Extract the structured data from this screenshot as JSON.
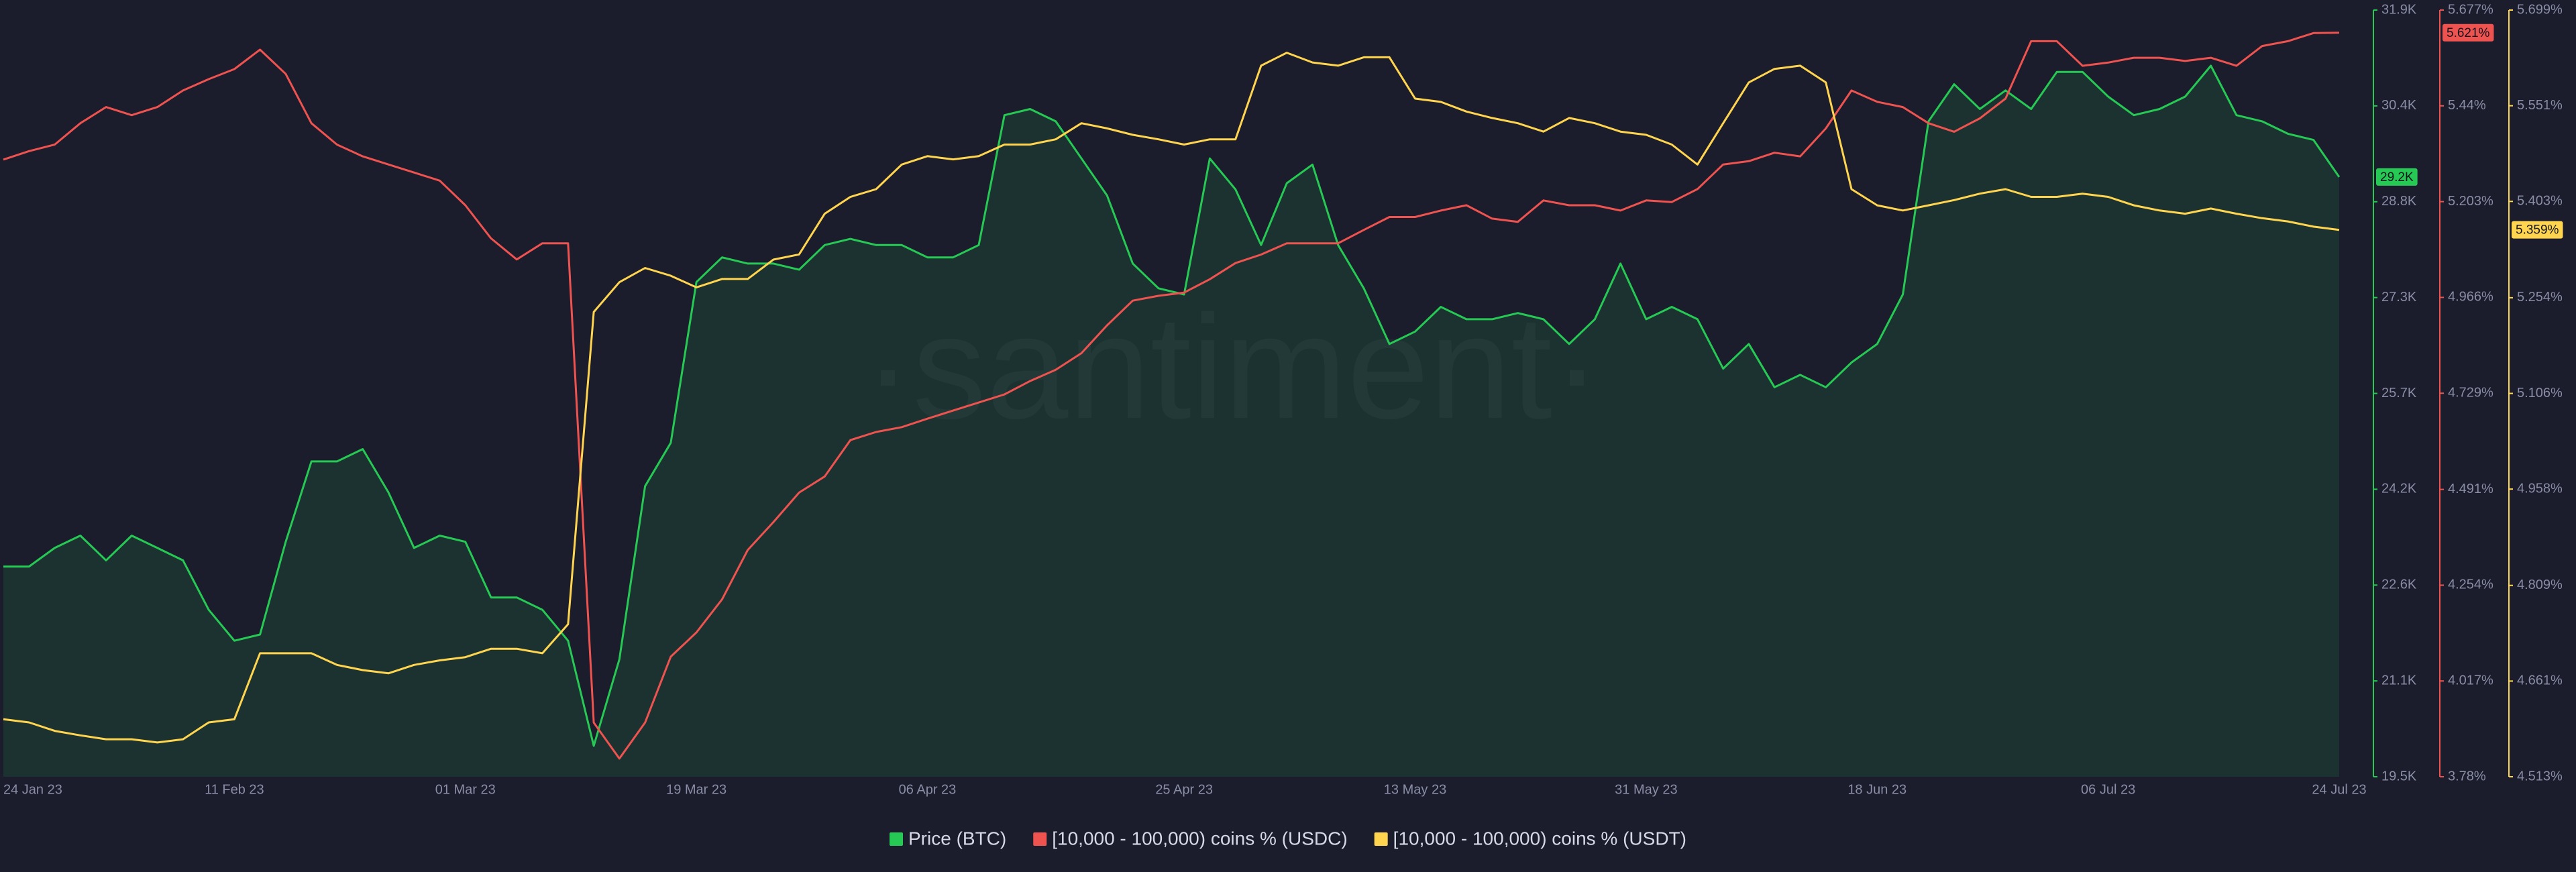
{
  "chart_data": {
    "type": "line",
    "watermark": "·santiment·",
    "categories": [
      "24 Jan 23",
      null,
      null,
      null,
      null,
      null,
      null,
      null,
      null,
      "11 Feb 23",
      null,
      null,
      null,
      null,
      null,
      null,
      null,
      null,
      "01 Mar 23",
      null,
      null,
      null,
      null,
      null,
      null,
      null,
      null,
      "19 Mar 23",
      null,
      null,
      null,
      null,
      null,
      null,
      null,
      null,
      "06 Apr 23",
      null,
      null,
      null,
      null,
      null,
      null,
      null,
      null,
      null,
      "25 Apr 23",
      null,
      null,
      null,
      null,
      null,
      null,
      null,
      null,
      "13 May 23",
      null,
      null,
      null,
      null,
      null,
      null,
      null,
      null,
      "31 May 23",
      null,
      null,
      null,
      null,
      null,
      null,
      null,
      null,
      "18 Jun 23",
      null,
      null,
      null,
      null,
      null,
      null,
      null,
      null,
      "06 Jul 23",
      null,
      null,
      null,
      null,
      null,
      null,
      null,
      null,
      "24 Jul 23"
    ],
    "ylim": [
      19500,
      31900
    ],
    "yticks": [
      {
        "value": 19500,
        "label": "19.5K"
      },
      {
        "value": 21050,
        "label": "21.1K"
      },
      {
        "value": 22600,
        "label": "22.6K"
      },
      {
        "value": 24150,
        "label": "24.2K"
      },
      {
        "value": 25700,
        "label": "25.7K"
      },
      {
        "value": 27250,
        "label": "27.3K"
      },
      {
        "value": 28800,
        "label": "28.8K"
      },
      {
        "value": 30350,
        "label": "30.4K"
      },
      {
        "value": 31900,
        "label": "31.9K"
      }
    ],
    "y2lim": [
      3.78,
      5.677
    ],
    "y2ticks": [
      {
        "value": 3.78,
        "label": "3.78%"
      },
      {
        "value": 4.017,
        "label": "4.017%"
      },
      {
        "value": 4.254,
        "label": "4.254%"
      },
      {
        "value": 4.491,
        "label": "4.491%"
      },
      {
        "value": 4.729,
        "label": "4.729%"
      },
      {
        "value": 4.966,
        "label": "4.966%"
      },
      {
        "value": 5.203,
        "label": "5.203%"
      },
      {
        "value": 5.44,
        "label": "5.44%"
      },
      {
        "value": 5.677,
        "label": "5.677%"
      }
    ],
    "y3lim": [
      4.513,
      5.699
    ],
    "y3ticks": [
      {
        "value": 4.513,
        "label": "4.513%"
      },
      {
        "value": 4.661,
        "label": "4.661%"
      },
      {
        "value": 4.809,
        "label": "4.809%"
      },
      {
        "value": 4.958,
        "label": "4.958%"
      },
      {
        "value": 5.106,
        "label": "5.106%"
      },
      {
        "value": 5.254,
        "label": "5.254%"
      },
      {
        "value": 5.403,
        "label": "5.403%"
      },
      {
        "value": 5.551,
        "label": "5.551%"
      },
      {
        "value": 5.699,
        "label": "5.699%"
      }
    ],
    "series": [
      {
        "name": "Price (BTC)",
        "color": "#26c953",
        "axis": "y",
        "area": true,
        "last_value_label": "29.2K",
        "values": [
          22900,
          22900,
          23200,
          23400,
          23000,
          23400,
          23200,
          23000,
          22200,
          21700,
          21800,
          23300,
          24600,
          24600,
          24800,
          24100,
          23200,
          23400,
          23300,
          22400,
          22400,
          22200,
          21700,
          20000,
          21400,
          24200,
          24900,
          27500,
          27900,
          27800,
          27800,
          27700,
          28100,
          28200,
          28100,
          28100,
          27900,
          27900,
          28100,
          30200,
          30300,
          30100,
          29500,
          28900,
          27800,
          27400,
          27300,
          29500,
          29000,
          28100,
          29100,
          29400,
          28100,
          27400,
          26500,
          26700,
          27100,
          26900,
          26900,
          27000,
          26900,
          26500,
          26900,
          27800,
          26900,
          27100,
          26900,
          26100,
          26500,
          25800,
          26000,
          25800,
          26200,
          26500,
          27300,
          30100,
          30700,
          30300,
          30600,
          30300,
          30900,
          30900,
          30500,
          30200,
          30300,
          30500,
          31000,
          30200,
          30100,
          29900,
          29800,
          29200
        ]
      },
      {
        "name": "[10,000 - 100,000) coins % (USDC)",
        "color": "#ef5350",
        "axis": "y2",
        "last_value_label": "5.621%",
        "values": [
          5.307,
          5.328,
          5.344,
          5.397,
          5.437,
          5.417,
          5.437,
          5.478,
          5.506,
          5.531,
          5.579,
          5.519,
          5.397,
          5.344,
          5.315,
          5.295,
          5.275,
          5.255,
          5.194,
          5.112,
          5.06,
          5.1,
          5.1,
          3.914,
          3.825,
          3.914,
          4.077,
          4.137,
          4.219,
          4.341,
          4.41,
          4.483,
          4.523,
          4.613,
          4.633,
          4.645,
          4.666,
          4.686,
          4.706,
          4.726,
          4.759,
          4.787,
          4.828,
          4.897,
          4.958,
          4.97,
          4.978,
          5.011,
          5.051,
          5.072,
          5.1,
          5.1,
          5.1,
          5.133,
          5.165,
          5.165,
          5.181,
          5.194,
          5.161,
          5.153,
          5.206,
          5.194,
          5.194,
          5.181,
          5.206,
          5.202,
          5.234,
          5.295,
          5.303,
          5.324,
          5.315,
          5.384,
          5.478,
          5.45,
          5.437,
          5.397,
          5.376,
          5.409,
          5.458,
          5.6,
          5.6,
          5.539,
          5.547,
          5.559,
          5.559,
          5.551,
          5.559,
          5.539,
          5.588,
          5.6,
          5.62,
          5.621
        ]
      },
      {
        "name": "[10,000 - 100,000) coins % (USDT)",
        "color": "#ffd54f",
        "axis": "y3",
        "last_value_label": "5.359%",
        "values": [
          4.602,
          4.597,
          4.584,
          4.577,
          4.571,
          4.571,
          4.566,
          4.571,
          4.597,
          4.602,
          4.704,
          4.704,
          4.704,
          4.686,
          4.678,
          4.673,
          4.686,
          4.693,
          4.698,
          4.711,
          4.711,
          4.704,
          4.749,
          5.232,
          5.278,
          5.3,
          5.288,
          5.27,
          5.283,
          5.283,
          5.313,
          5.321,
          5.384,
          5.41,
          5.422,
          5.46,
          5.473,
          5.468,
          5.473,
          5.491,
          5.491,
          5.499,
          5.524,
          5.516,
          5.506,
          5.499,
          5.491,
          5.499,
          5.499,
          5.613,
          5.633,
          5.618,
          5.613,
          5.626,
          5.626,
          5.562,
          5.557,
          5.542,
          5.532,
          5.524,
          5.511,
          5.532,
          5.524,
          5.511,
          5.506,
          5.491,
          5.46,
          5.524,
          5.587,
          5.608,
          5.613,
          5.587,
          5.422,
          5.397,
          5.389,
          5.397,
          5.405,
          5.415,
          5.422,
          5.41,
          5.41,
          5.415,
          5.41,
          5.397,
          5.389,
          5.384,
          5.392,
          5.384,
          5.377,
          5.372,
          5.364,
          5.359
        ]
      }
    ]
  }
}
